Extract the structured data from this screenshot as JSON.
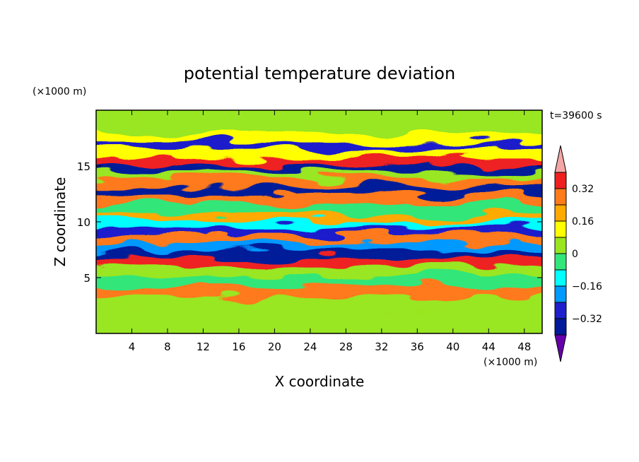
{
  "chart_data": {
    "type": "heatmap",
    "title": "potential temperature deviation",
    "xlabel": "X coordinate",
    "ylabel": "Z coordinate",
    "x_unit": "(×1000 m)",
    "y_unit": "(×1000 m)",
    "time_label": "t=39600 s",
    "xlim": [
      0,
      50
    ],
    "ylim": [
      0,
      20
    ],
    "x_ticks": [
      4,
      8,
      12,
      16,
      20,
      24,
      28,
      32,
      36,
      40,
      44,
      48
    ],
    "y_ticks": [
      5,
      10,
      15
    ],
    "colorbar": {
      "levels": [
        -0.4,
        -0.32,
        -0.24,
        -0.16,
        -0.08,
        0,
        0.08,
        0.16,
        0.24,
        0.32,
        0.4
      ],
      "tick_labels": [
        "0.32",
        "0.16",
        "0",
        "−0.16",
        "−0.32"
      ],
      "tick_values": [
        0.32,
        0.16,
        0,
        -0.16,
        -0.32
      ],
      "colors_top_to_bottom": [
        "#f4a6a6",
        "#ee2020",
        "#ff7a1a",
        "#ffaa00",
        "#ffff00",
        "#99e620",
        "#33e67a",
        "#00ffff",
        "#0099ff",
        "#1f1fcc",
        "#001a99",
        "#6600aa"
      ]
    },
    "bands": [
      {
        "z": 19.0,
        "value": 0.05
      },
      {
        "z": 18.0,
        "value": 0.02
      },
      {
        "z": 17.0,
        "value": 0.12
      },
      {
        "z": 16.4,
        "value": -0.3
      },
      {
        "z": 15.8,
        "value": 0.1
      },
      {
        "z": 15.1,
        "value": 0.35
      },
      {
        "z": 14.4,
        "value": -0.36
      },
      {
        "z": 13.8,
        "value": 0.05
      },
      {
        "z": 13.2,
        "value": 0.3
      },
      {
        "z": 12.4,
        "value": -0.34
      },
      {
        "z": 11.6,
        "value": 0.26
      },
      {
        "z": 10.8,
        "value": -0.05
      },
      {
        "z": 10.0,
        "value": 0.22
      },
      {
        "z": 9.4,
        "value": -0.1
      },
      {
        "z": 8.8,
        "value": -0.3
      },
      {
        "z": 8.1,
        "value": 0.28
      },
      {
        "z": 7.3,
        "value": -0.22
      },
      {
        "z": 6.7,
        "value": -0.36
      },
      {
        "z": 6.1,
        "value": 0.34
      },
      {
        "z": 5.2,
        "value": 0.02
      },
      {
        "z": 4.3,
        "value": -0.08
      },
      {
        "z": 3.4,
        "value": 0.3
      },
      {
        "z": 2.4,
        "value": 0.0
      },
      {
        "z": 1.2,
        "value": 0.05
      }
    ]
  }
}
